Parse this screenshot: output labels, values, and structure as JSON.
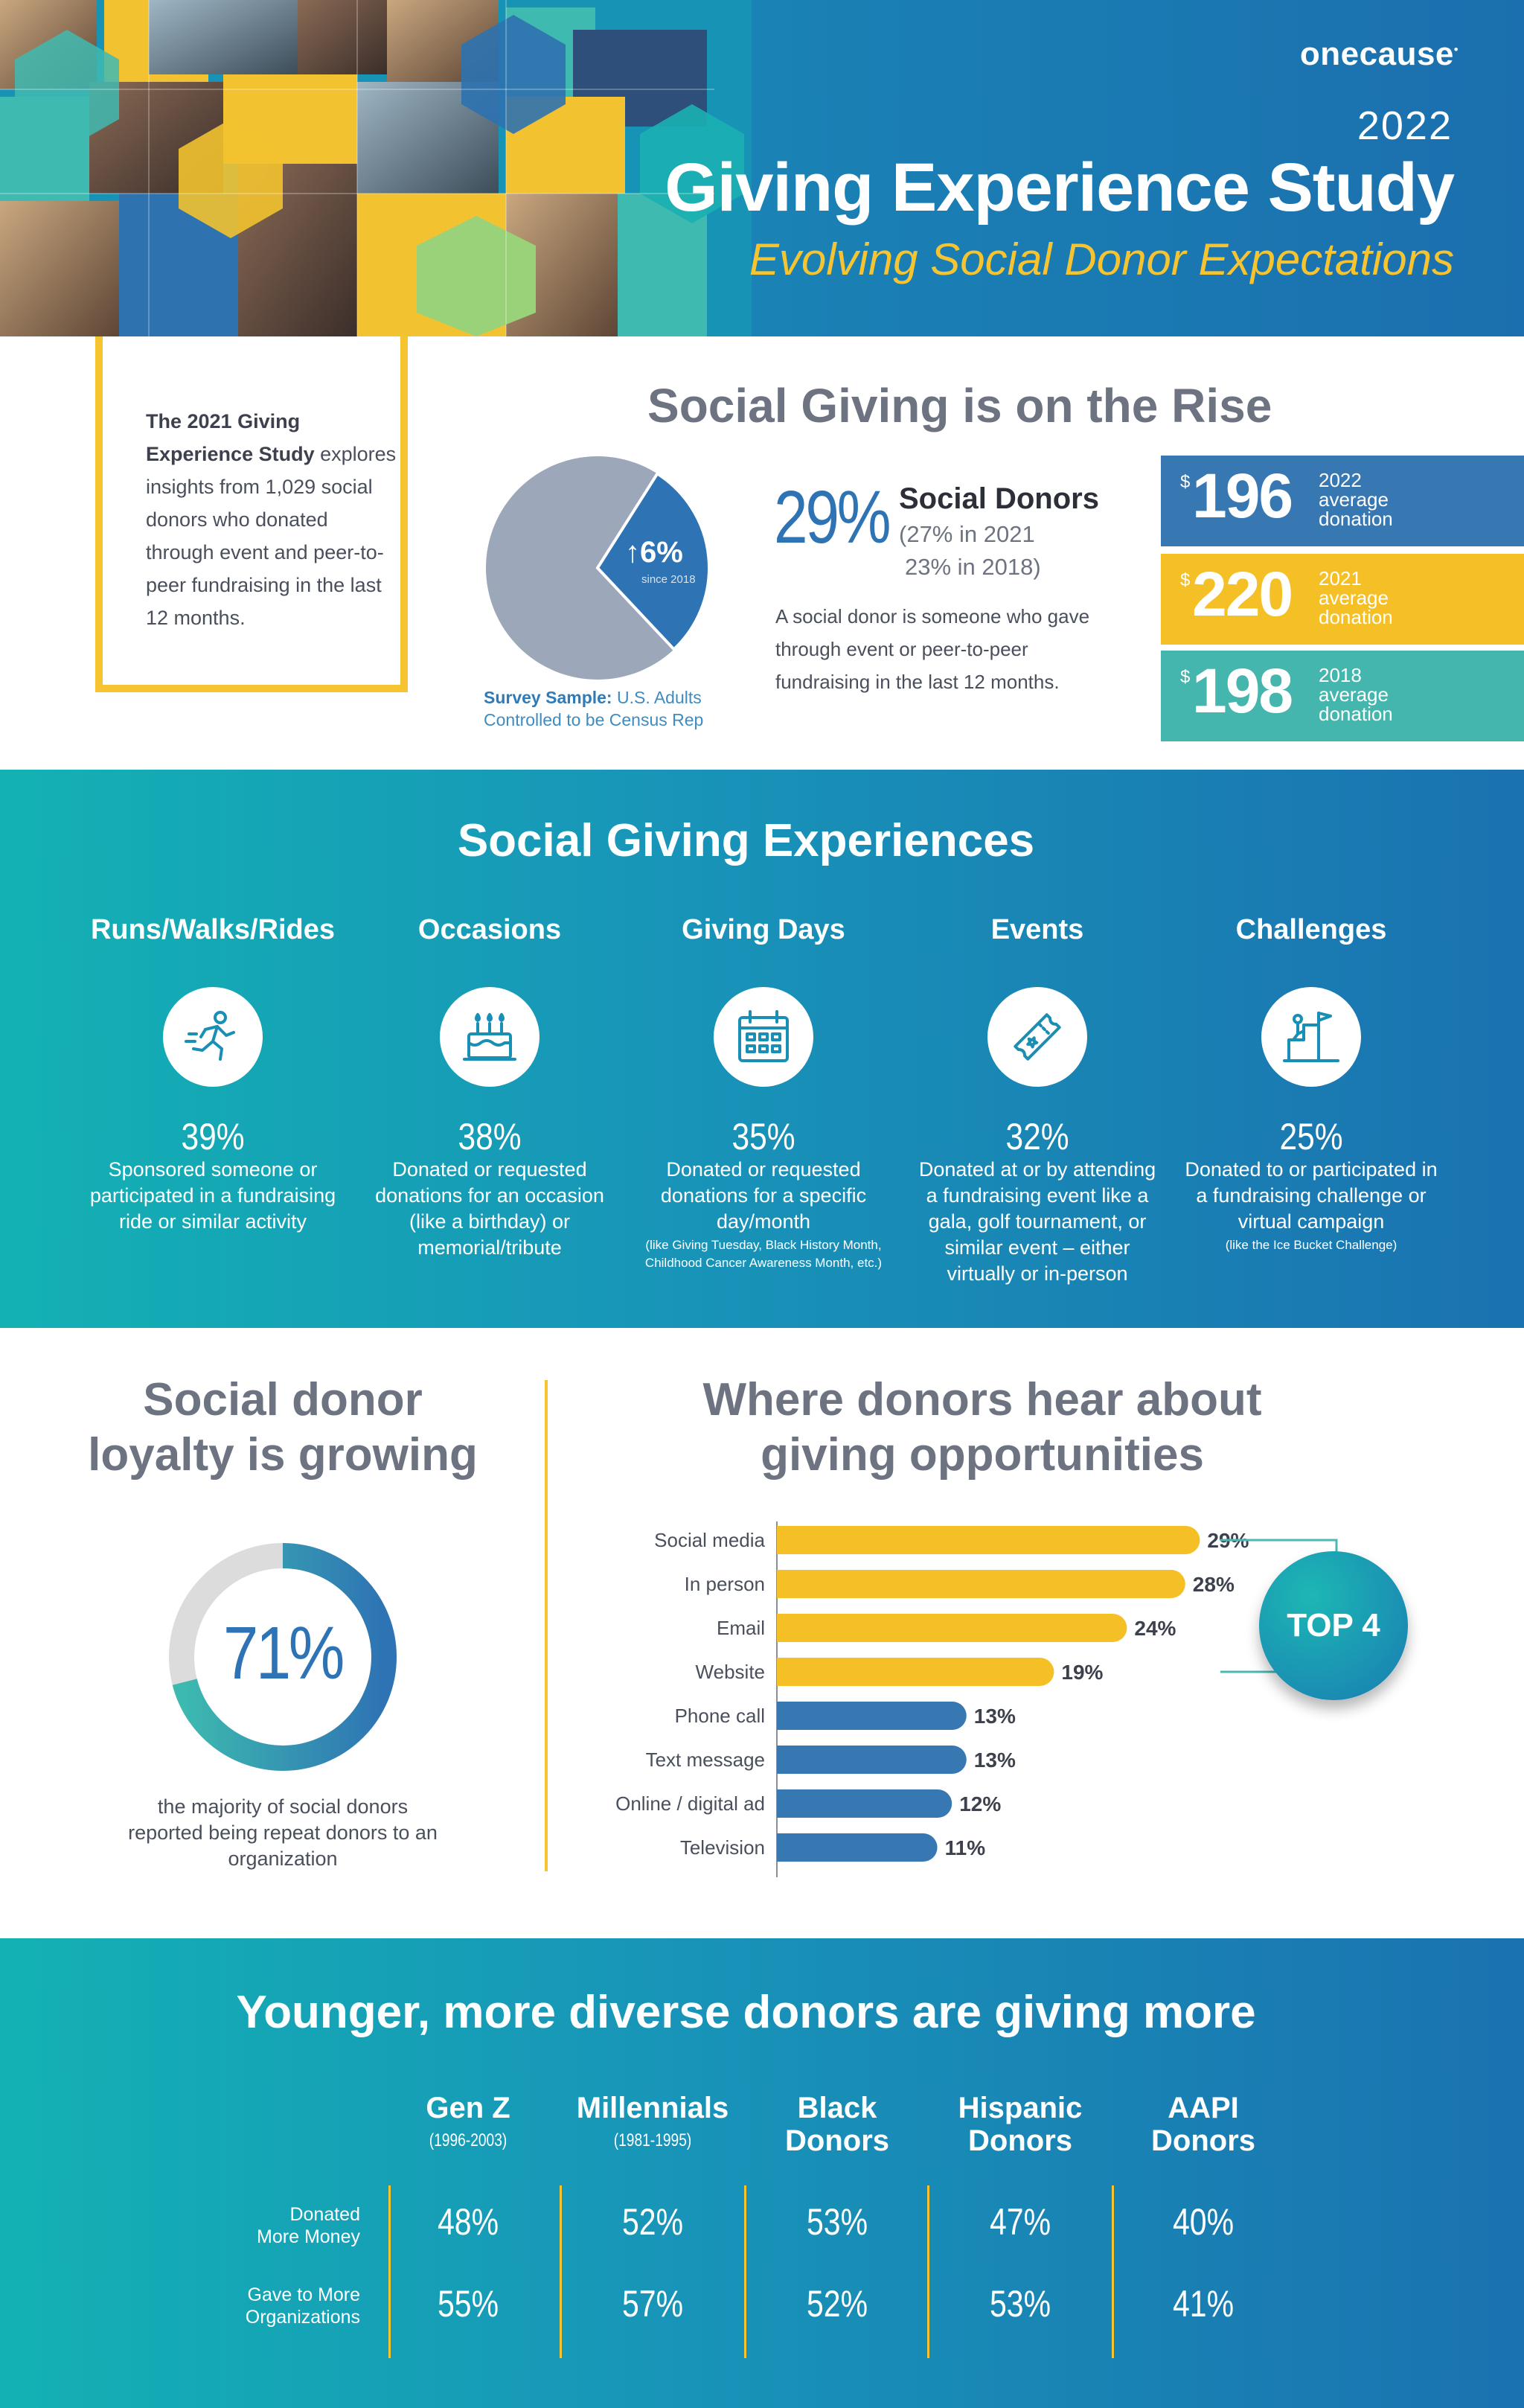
{
  "header": {
    "brand": "onecause",
    "year": "2022",
    "title": "Giving Experience Study",
    "subtitle": "Evolving Social Donor Expectations"
  },
  "intro": {
    "bold": "The 2021 Giving Experience Study",
    "text": "explores insights from 1,029 social donors who donated through event and peer-to-peer fundraising in the last 12 months."
  },
  "rise": {
    "title": "Social Giving is on the Rise",
    "pie_increase": "6%",
    "pie_since": "since 2018",
    "survey_bold": "Survey Sample:",
    "survey_text": "U.S. Adults Controlled to be Census Rep",
    "percent": "29%",
    "label": "Social Donors",
    "hist_2021": "(27% in 2021",
    "hist_2018": "23% in 2018)",
    "definition": "A social donor is someone who gave through event or peer-to-peer fundraising in the last 12 months.",
    "donations": [
      {
        "currency": "$",
        "amount": "196",
        "year": "2022",
        "l1": "average",
        "l2": "donation",
        "color": "#3777b2"
      },
      {
        "currency": "$",
        "amount": "220",
        "year": "2021",
        "l1": "average",
        "l2": "donation",
        "color": "#f5c026"
      },
      {
        "currency": "$",
        "amount": "198",
        "year": "2018",
        "l1": "average",
        "l2": "donation",
        "color": "#45b6ad"
      }
    ]
  },
  "experiences": {
    "title": "Social Giving Experiences",
    "items": [
      {
        "heading": "Runs/Walks/Rides",
        "icon": "runner-icon",
        "percent": "39%",
        "desc": "Sponsored someone or participated in a fundraising ride or similar activity",
        "note": ""
      },
      {
        "heading": "Occasions",
        "icon": "birthday-cake-icon",
        "percent": "38%",
        "desc": "Donated or requested donations for an occasion (like a birthday) or memorial/tribute",
        "note": ""
      },
      {
        "heading": "Giving Days",
        "icon": "calendar-icon",
        "percent": "35%",
        "desc": "Donated or requested donations for a specific day/month",
        "note": "(like Giving Tuesday, Black History Month, Childhood Cancer Awareness Month, etc.)"
      },
      {
        "heading": "Events",
        "icon": "ticket-icon",
        "percent": "32%",
        "desc": "Donated at or by attending a fundraising event like a gala, golf tournament, or similar event – either virtually or in-person",
        "note": ""
      },
      {
        "heading": "Challenges",
        "icon": "climbing-flag-icon",
        "percent": "25%",
        "desc": "Donated to or participated in a fundraising challenge or virtual campaign",
        "note": "(like the Ice Bucket Challenge)"
      }
    ]
  },
  "loyalty": {
    "title_l1": "Social donor",
    "title_l2": "loyalty is growing",
    "percent": "71%",
    "value": 71,
    "text": "the majority of social donors reported being repeat donors to an organization"
  },
  "chart_data": {
    "type": "bar",
    "title": "Where donors hear about giving opportunities",
    "categories": [
      "Social media",
      "In person",
      "Email",
      "Website",
      "Phone call",
      "Text message",
      "Online / digital ad",
      "Television"
    ],
    "values": [
      29,
      28,
      24,
      19,
      13,
      13,
      12,
      11
    ],
    "labels": [
      "29%",
      "28%",
      "24%",
      "19%",
      "13%",
      "13%",
      "12%",
      "11%"
    ],
    "highlight_count": 4,
    "highlight_color": "#f5c026",
    "other_color": "#3777b2",
    "callout": "TOP 4",
    "orientation": "horizontal"
  },
  "where": {
    "title_l1": "Where donors hear about",
    "title_l2": "giving opportunities"
  },
  "younger": {
    "title": "Younger, more diverse donors are giving more",
    "groups": [
      {
        "l1": "Gen Z",
        "l2": "",
        "sub": "(1996-2003)"
      },
      {
        "l1": "Millennials",
        "l2": "",
        "sub": "(1981-1995)"
      },
      {
        "l1": "Black",
        "l2": "Donors",
        "sub": ""
      },
      {
        "l1": "Hispanic",
        "l2": "Donors",
        "sub": ""
      },
      {
        "l1": "AAPI",
        "l2": "Donors",
        "sub": ""
      }
    ],
    "row1_label_l1": "Donated",
    "row1_label_l2": "More Money",
    "row2_label_l1": "Gave to More",
    "row2_label_l2": "Organizations",
    "row1": [
      "48%",
      "52%",
      "53%",
      "47%",
      "40%"
    ],
    "row2": [
      "55%",
      "57%",
      "52%",
      "53%",
      "41%"
    ]
  }
}
